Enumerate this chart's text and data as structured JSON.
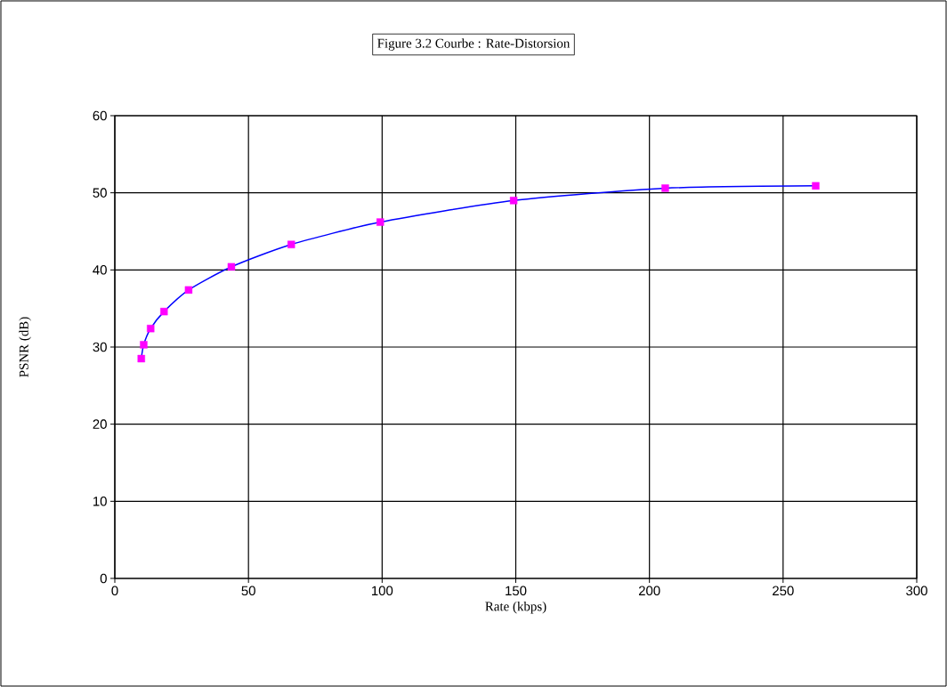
{
  "chart_data": {
    "type": "line",
    "title": "Figure 3.2 Courbe : Rate-Distorsion",
    "xlabel": "Rate (kbps)",
    "ylabel": "PSNR (dB)",
    "x": [
      9.9,
      10.8,
      13.4,
      18.4,
      27.6,
      43.6,
      66.0,
      99.3,
      149.2,
      205.9,
      262.2
    ],
    "series": [
      {
        "color": "#0000ff",
        "colors": [
          "#ff00ff",
          "#ff00ff",
          "#ff00ff",
          "#ff00ff",
          "#ff00ff",
          "#ff00ff",
          "#ff00ff",
          "#ff00ff",
          "#ff00ff",
          "#ff00ff",
          "#ff00ff"
        ],
        "values": [
          28.5,
          30.3,
          32.4,
          34.6,
          37.4,
          40.4,
          43.3,
          46.2,
          49.0,
          50.6,
          50.9
        ]
      }
    ],
    "xlim": [
      0,
      300
    ],
    "ylim": [
      0,
      60
    ],
    "xticks": [
      0,
      50,
      100,
      150,
      200,
      250,
      300
    ],
    "yticks": [
      0,
      10,
      20,
      30,
      40,
      50,
      60
    ],
    "grid": true,
    "marker": "square",
    "line_style": "solid"
  }
}
